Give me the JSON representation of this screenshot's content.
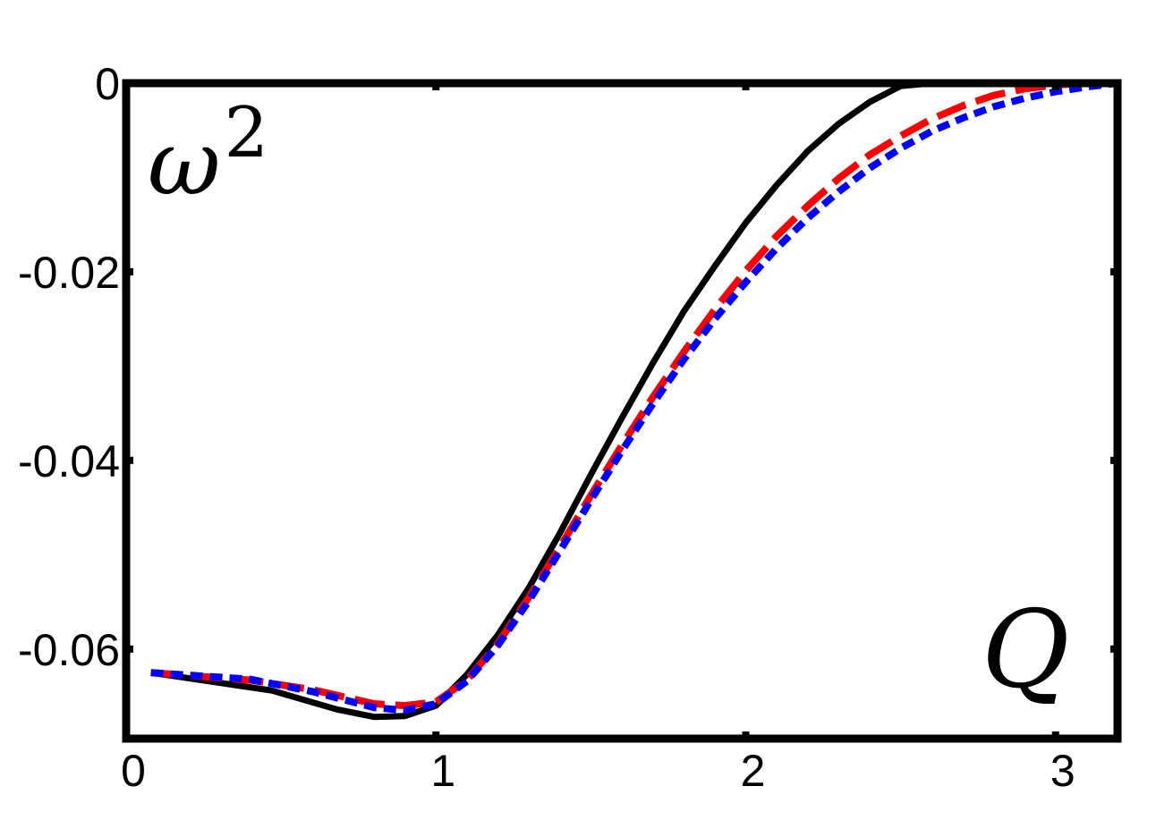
{
  "chart_data": {
    "type": "line",
    "title": "",
    "ylabel": "ω",
    "ylabel_superscript": "2",
    "xlabel": "Q",
    "xlim": [
      0,
      3.2
    ],
    "ylim": [
      -0.0695,
      0
    ],
    "x_ticks": [
      0,
      1,
      2,
      3
    ],
    "x_tick_labels": [
      "0",
      "1",
      "2",
      "3"
    ],
    "y_ticks": [
      0,
      -0.02,
      -0.04,
      -0.06
    ],
    "y_tick_labels": [
      "0",
      "-0.02",
      "-0.04",
      "-0.06"
    ],
    "grid": false,
    "legend": "none",
    "series": [
      {
        "color": "#000000",
        "style": "solid",
        "x": [
          0.08,
          0.47,
          0.68,
          0.8,
          0.9,
          1.0,
          1.1,
          1.2,
          1.3,
          1.4,
          1.5,
          1.6,
          1.7,
          1.8,
          1.9,
          2.0,
          2.1,
          2.2,
          2.3,
          2.4,
          2.5,
          2.6
        ],
        "y": [
          -0.0625,
          -0.0644,
          -0.0664,
          -0.0672,
          -0.0671,
          -0.066,
          -0.0627,
          -0.0585,
          -0.0535,
          -0.0477,
          -0.0415,
          -0.0355,
          -0.0297,
          -0.0242,
          -0.0194,
          -0.0148,
          -0.0108,
          -0.0072,
          -0.0043,
          -0.002,
          -0.0003,
          0.0
        ]
      },
      {
        "color": "#ff0000",
        "style": "dashed",
        "x": [
          0.08,
          0.4,
          0.6,
          0.8,
          0.9,
          1.0,
          1.1,
          1.2,
          1.3,
          1.4,
          1.5,
          1.6,
          1.7,
          1.8,
          1.9,
          2.0,
          2.1,
          2.2,
          2.3,
          2.4,
          2.5,
          2.6,
          2.7,
          2.8,
          2.9,
          3.0,
          3.1,
          3.18
        ],
        "y": [
          -0.0625,
          -0.0633,
          -0.0643,
          -0.0658,
          -0.066,
          -0.0656,
          -0.0633,
          -0.0594,
          -0.0545,
          -0.0492,
          -0.0437,
          -0.0384,
          -0.0333,
          -0.0285,
          -0.024,
          -0.0199,
          -0.0162,
          -0.013,
          -0.0101,
          -0.0076,
          -0.0056,
          -0.0038,
          -0.0024,
          -0.0013,
          -0.0006,
          -0.0002,
          0.0,
          0.0
        ]
      },
      {
        "color": "#0000ff",
        "style": "dotted",
        "x": [
          0.08,
          0.4,
          0.6,
          0.8,
          0.9,
          1.0,
          1.1,
          1.2,
          1.3,
          1.4,
          1.5,
          1.6,
          1.7,
          1.8,
          1.9,
          2.0,
          2.1,
          2.2,
          2.3,
          2.4,
          2.5,
          2.6,
          2.7,
          2.8,
          2.9,
          3.0,
          3.1,
          3.2
        ],
        "y": [
          -0.0625,
          -0.0632,
          -0.0645,
          -0.0662,
          -0.0665,
          -0.0658,
          -0.0634,
          -0.0596,
          -0.0549,
          -0.0496,
          -0.0442,
          -0.039,
          -0.034,
          -0.0293,
          -0.025,
          -0.0211,
          -0.0175,
          -0.0143,
          -0.0115,
          -0.009,
          -0.0069,
          -0.0051,
          -0.0037,
          -0.0025,
          -0.0016,
          -0.0009,
          -0.0004,
          0.0
        ]
      }
    ]
  }
}
